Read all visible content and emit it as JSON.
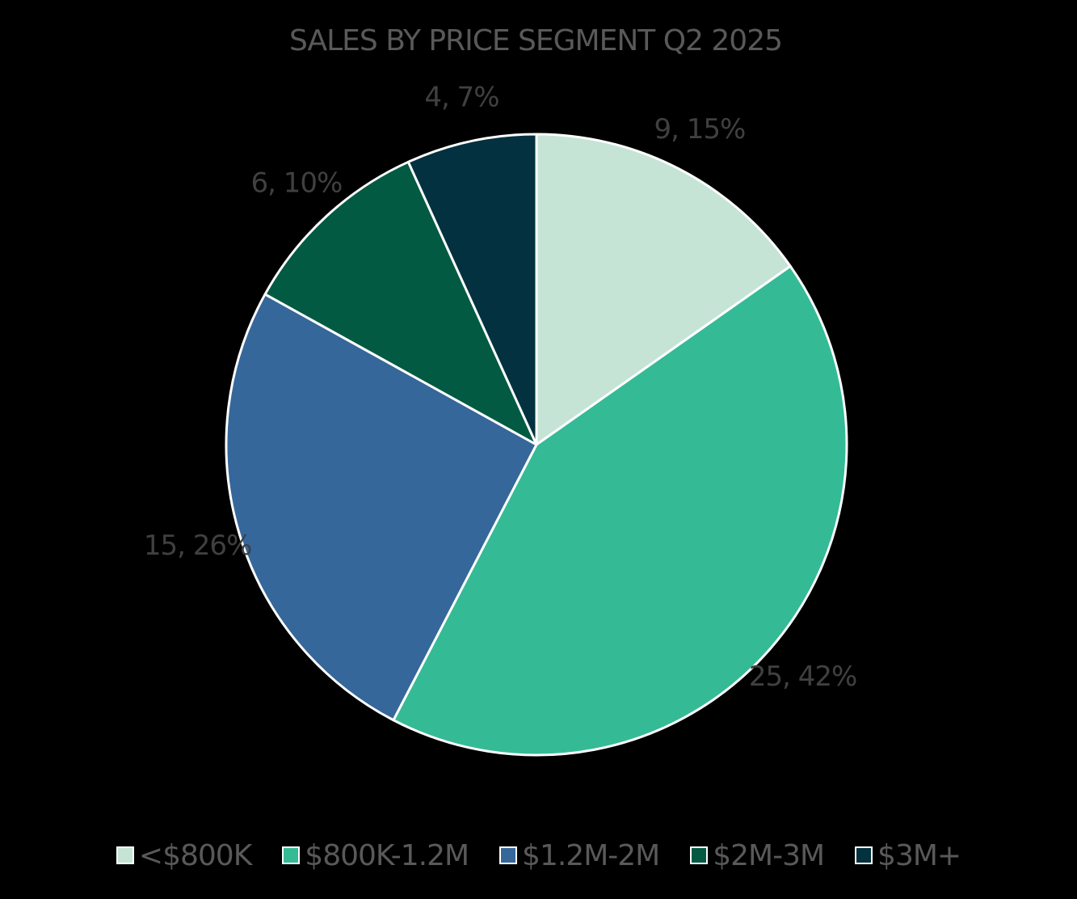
{
  "chart_data": {
    "type": "pie",
    "title": "SALES BY PRICE SEGMENT Q2 2025",
    "categories": [
      "<$800K",
      "$800K-1.2M",
      "$1.2M-2M",
      "$2M-3M",
      "$3M+"
    ],
    "values": [
      9,
      25,
      15,
      6,
      4
    ],
    "percent_labels": [
      "15%",
      "42%",
      "26%",
      "10%",
      "7%"
    ],
    "data_labels": [
      "9, 15%",
      "25, 42%",
      "15, 26%",
      "6, 10%",
      "4, 7%"
    ],
    "colors": [
      "#c5e4d6",
      "#35ba96",
      "#35679b",
      "#025a42",
      "#03313f"
    ],
    "legend_position": "bottom",
    "label_position": "outside-end",
    "start_angle_deg": 0,
    "direction": "clockwise"
  }
}
